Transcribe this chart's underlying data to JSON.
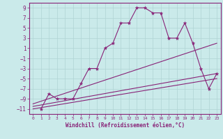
{
  "title": "",
  "xlabel": "Windchill (Refroidissement éolien,°C)",
  "bg_color": "#caeaea",
  "grid_color": "#b0d4d4",
  "line_color": "#882277",
  "spine_color": "#882277",
  "xlim": [
    -0.5,
    23.5
  ],
  "ylim": [
    -12,
    10
  ],
  "xticks": [
    0,
    1,
    2,
    3,
    4,
    5,
    6,
    7,
    8,
    9,
    10,
    11,
    12,
    13,
    14,
    15,
    16,
    17,
    18,
    19,
    20,
    21,
    22,
    23
  ],
  "yticks": [
    -11,
    -9,
    -7,
    -5,
    -3,
    -1,
    1,
    3,
    5,
    7,
    9
  ],
  "series": [
    {
      "x": [
        1,
        2,
        3,
        4,
        5,
        6,
        7,
        8,
        9,
        10,
        11,
        12,
        13,
        14,
        15,
        16,
        17,
        18,
        19,
        20,
        21,
        22,
        23
      ],
      "y": [
        -11,
        -8,
        -9,
        -9,
        -9,
        -6,
        -3,
        -3,
        1,
        2,
        6,
        6,
        9,
        9,
        8,
        8,
        3,
        3,
        6,
        2,
        -3,
        -7,
        -4
      ],
      "marker": true
    },
    {
      "x": [
        0,
        23
      ],
      "y": [
        -10,
        2
      ],
      "marker": false
    },
    {
      "x": [
        0,
        23
      ],
      "y": [
        -10.5,
        -4
      ],
      "marker": false
    },
    {
      "x": [
        0,
        23
      ],
      "y": [
        -11,
        -5
      ],
      "marker": false
    }
  ]
}
